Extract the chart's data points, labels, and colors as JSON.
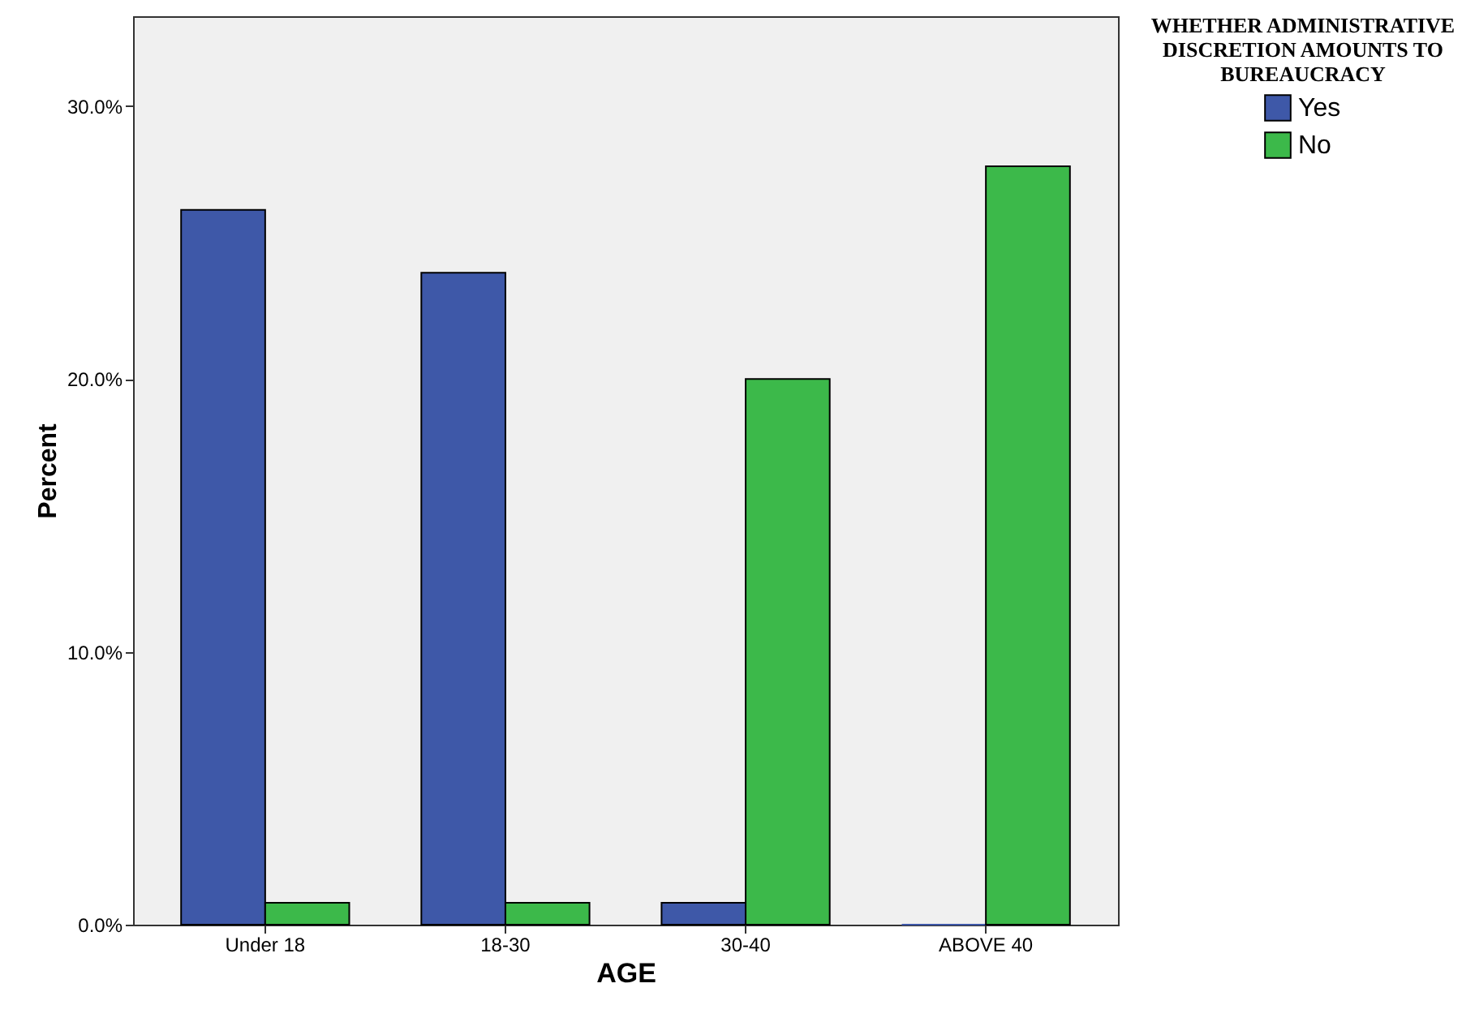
{
  "chart_data": {
    "type": "bar",
    "xlabel": "AGE",
    "ylabel": "Percent",
    "legend_title": "WHETHER ADMINISTRATIVE DISCRETION AMOUNTS TO BUREAUCRACY",
    "categories": [
      "Under 18",
      "18-30",
      "30-40",
      "ABOVE 40"
    ],
    "series": [
      {
        "name": "Yes",
        "color": "#3e58a8",
        "values": [
          26.2,
          23.9,
          0.8,
          0
        ]
      },
      {
        "name": "No",
        "color": "#3cb94a",
        "values": [
          0.8,
          0.8,
          20.0,
          27.8
        ]
      }
    ],
    "ylim": [
      0,
      33.3
    ],
    "yticks": [
      {
        "value": 0,
        "label": "0.0%"
      },
      {
        "value": 10,
        "label": "10.0%"
      },
      {
        "value": 20,
        "label": "20.0%"
      },
      {
        "value": 30,
        "label": "30.0%"
      }
    ],
    "grid": false,
    "legend": "top right"
  }
}
